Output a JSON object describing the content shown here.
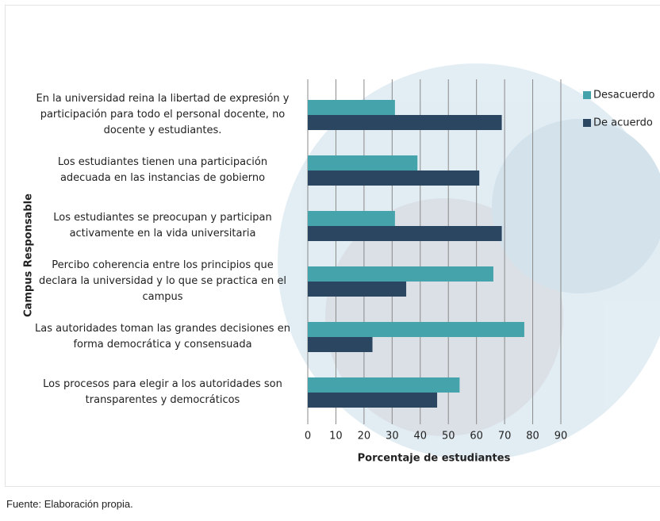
{
  "chart_data": {
    "type": "hbar",
    "categories": [
      "En la universidad reina la libertad de expresión y participación para todo el personal docente, no docente y estudiantes.",
      "Los estudiantes tienen una participación adecuada en las instancias de gobierno",
      "Los estudiantes se preocupan y participan activamente en la vida universitaria",
      "Percibo coherencia entre los principios que declara la universidad y lo que se practica en el campus",
      "Las autoridades toman las grandes decisiones en forma democrática y consensuada",
      "Los procesos para elegir a los autoridades son transparentes y democráticos"
    ],
    "series": [
      {
        "name": "Desacuerdo",
        "color": "#45a3ac",
        "values": [
          31,
          39,
          31,
          66,
          77,
          54
        ]
      },
      {
        "name": "De acuerdo",
        "color": "#2b4661",
        "values": [
          69,
          61,
          69,
          35,
          23,
          46
        ]
      }
    ],
    "xlim": [
      0,
      90
    ],
    "xticks": [
      0,
      10,
      20,
      30,
      40,
      50,
      60,
      70,
      80,
      90
    ],
    "grid": true,
    "x_label": "Porcentaje de estudiantes",
    "y_label": "Campus Responsable",
    "legend": "top-right",
    "source": "Fuente: Elaboración propia."
  }
}
